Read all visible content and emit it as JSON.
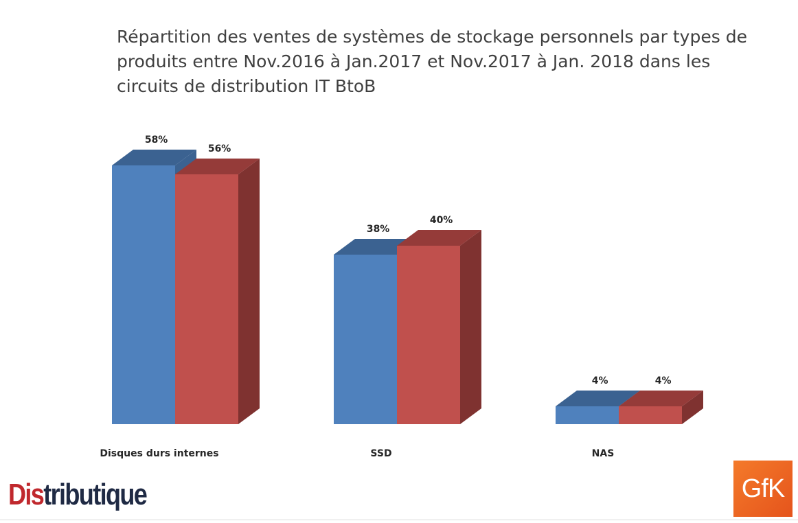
{
  "chart_data": {
    "type": "bar",
    "title": "Répartition des ventes de systèmes de stockage personnels par types de produits entre Nov.2016 à Jan.2017 et Nov.2017 à Jan. 2018 dans les circuits de distribution IT BtoB",
    "categories": [
      "Disques durs internes",
      "SSD",
      "NAS"
    ],
    "series": [
      {
        "values": [
          58,
          38,
          4
        ],
        "labels": [
          "58%",
          "38%",
          "4%"
        ],
        "color": "#4f81bd"
      },
      {
        "values": [
          56,
          40,
          4
        ],
        "labels": [
          "56%",
          "40%",
          "4%"
        ],
        "color": "#c0504d"
      }
    ],
    "ylim": [
      0,
      100
    ],
    "grid": false,
    "legend": "none",
    "style": "3d-column"
  },
  "logos": {
    "distributique": "Distributique",
    "distributique_red_part": "Dis",
    "distributique_rest": "tributique",
    "gfk": "GfK"
  }
}
